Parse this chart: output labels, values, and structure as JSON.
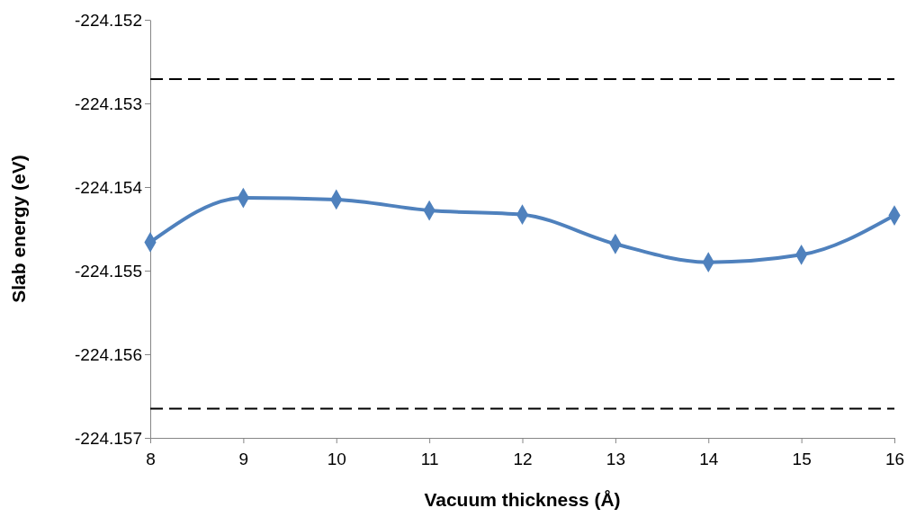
{
  "chart_data": {
    "type": "line",
    "xlabel": "Vacuum thickness (Å)",
    "ylabel": "Slab energy (eV)",
    "x": [
      8,
      9,
      10,
      11,
      12,
      13,
      14,
      15,
      16
    ],
    "series": [
      {
        "color": "#4f81bd",
        "values": [
          -224.15466,
          -224.15413,
          -224.15415,
          -224.15428,
          -224.15433,
          -224.15468,
          -224.1549,
          -224.15481,
          -224.15434
        ]
      }
    ],
    "xlim": [
      8,
      16
    ],
    "xticks": [
      8,
      9,
      10,
      11,
      12,
      13,
      14,
      15,
      16
    ],
    "ylim": [
      -224.157,
      -224.152
    ],
    "yticks": [
      -224.157,
      -224.156,
      -224.155,
      -224.154,
      -224.153,
      -224.152
    ],
    "ref_lines": [
      {
        "axis": "y",
        "value": -224.15271,
        "color": "#000000",
        "line_style": "dashed"
      },
      {
        "axis": "y",
        "value": -224.15665,
        "color": "#000000",
        "line_style": "dashed"
      }
    ],
    "marker": "diamond",
    "grid": false
  }
}
